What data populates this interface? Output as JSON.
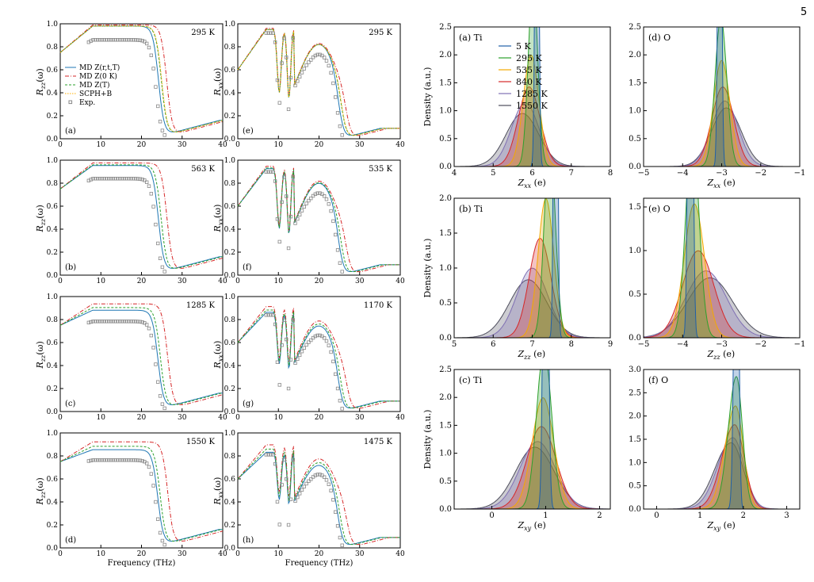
{
  "page_number": "5",
  "colors": {
    "md_full": "#1f77b4",
    "md_0K": "#d62728",
    "md_T": "#2ca02c",
    "scph": "#ffb000",
    "exp": "#888888",
    "T5": "#1f5fa8",
    "T295": "#2ca02c",
    "T535": "#f2a900",
    "T840": "#d62728",
    "T1285": "#7f6fb3",
    "T1550": "#4d4d5c"
  },
  "reflectivity": {
    "legend": {
      "labels": [
        "MD Z(r,t,T)",
        "MD Z(0 K)",
        "MD Z(T)",
        "SCPH+B",
        "Exp."
      ],
      "placement": "upper-left of panel (a)"
    },
    "xlabel": "Frequency (THz)",
    "xlim": [
      0,
      40
    ],
    "ylim": [
      0,
      1.0
    ],
    "xticks": [
      "0",
      "10",
      "20",
      "30",
      "40"
    ],
    "yticks": [
      "0.0",
      "0.2",
      "0.4",
      "0.6",
      "0.8",
      "1.0"
    ],
    "panels": [
      {
        "id": "a",
        "label": "(a)",
        "temp": "295 K",
        "ylabel": "R_zz(ω)",
        "comp": "zz",
        "has_scph": true
      },
      {
        "id": "e",
        "label": "(e)",
        "temp": "295 K",
        "ylabel": "R_xx(ω)",
        "comp": "xx",
        "has_scph": true
      },
      {
        "id": "b",
        "label": "(b)",
        "temp": "563 K",
        "ylabel": "R_zz(ω)",
        "comp": "zz",
        "has_scph": false
      },
      {
        "id": "f",
        "label": "(f)",
        "temp": "535 K",
        "ylabel": "R_xx(ω)",
        "comp": "xx",
        "has_scph": false
      },
      {
        "id": "c",
        "label": "(c)",
        "temp": "1285 K",
        "ylabel": "R_zz(ω)",
        "comp": "zz",
        "has_scph": false
      },
      {
        "id": "g",
        "label": "(g)",
        "temp": "1170 K",
        "ylabel": "R_xx(ω)",
        "comp": "xx",
        "has_scph": false
      },
      {
        "id": "d",
        "label": "(d)",
        "temp": "1550 K",
        "ylabel": "R_zz(ω)",
        "comp": "zz",
        "has_scph": false
      },
      {
        "id": "h",
        "label": "(h)",
        "temp": "1475 K",
        "ylabel": "R_xx(ω)",
        "comp": "xx",
        "has_scph": false
      }
    ]
  },
  "charges": {
    "legend": {
      "labels": [
        "5 K",
        "295 K",
        "535 K",
        "840 K",
        "1285 K",
        "1550 K"
      ],
      "placement": "panel (a) right of label"
    },
    "ylabel": "Density (a.u.)",
    "panels": [
      {
        "id": "a",
        "label": "(a) Ti",
        "xlabel": "Z_xx (e)",
        "xlim": [
          4,
          8
        ],
        "ylim": [
          0,
          2.5
        ],
        "xticks": [
          "4",
          "5",
          "6",
          "7",
          "8"
        ],
        "yticks": [
          "0.0",
          "0.5",
          "1.0",
          "1.5",
          "2.0",
          "2.5"
        ],
        "mu": [
          6.12,
          6.02,
          5.97,
          5.92,
          5.82,
          5.75
        ],
        "sigma": [
          0.04,
          0.12,
          0.2,
          0.28,
          0.35,
          0.42
        ]
      },
      {
        "id": "d",
        "label": "(d) O",
        "xlabel": "Z_xx (e)",
        "xlim": [
          -5,
          -1
        ],
        "ylim": [
          0,
          2.5
        ],
        "xticks": [
          "-5",
          "-4",
          "-3",
          "-2",
          "-1"
        ],
        "yticks": [
          "0.0",
          "0.5",
          "1.0",
          "1.5",
          "2.0",
          "2.5"
        ],
        "mu": [
          -3.05,
          -3.02,
          -3.0,
          -2.97,
          -2.92,
          -2.88
        ],
        "sigma": [
          0.04,
          0.15,
          0.21,
          0.28,
          0.34,
          0.38
        ]
      },
      {
        "id": "b",
        "label": "(b) Ti",
        "xlabel": "Z_zz (e)",
        "xlim": [
          5,
          9
        ],
        "ylim": [
          0,
          2.0
        ],
        "xticks": [
          "5",
          "6",
          "7",
          "8",
          "9"
        ],
        "yticks": [
          "0.0",
          "0.5",
          "1.0",
          "1.5",
          "2.0"
        ],
        "mu": [
          7.6,
          7.45,
          7.35,
          7.2,
          7.0,
          6.9
        ],
        "sigma": [
          0.04,
          0.14,
          0.2,
          0.28,
          0.4,
          0.48
        ]
      },
      {
        "id": "e",
        "label": "(e) O",
        "xlabel": "Z_zz (e)",
        "xlim": [
          -5,
          -1
        ],
        "ylim": [
          0,
          1.6
        ],
        "xticks": [
          "-5",
          "-4",
          "-3",
          "-2",
          "-1"
        ],
        "yticks": [
          "0.0",
          "0.5",
          "1.0",
          "1.5"
        ],
        "mu": [
          -3.8,
          -3.75,
          -3.7,
          -3.6,
          -3.4,
          -3.3
        ],
        "sigma": [
          0.05,
          0.17,
          0.26,
          0.4,
          0.52,
          0.58
        ]
      },
      {
        "id": "c",
        "label": "(c) Ti",
        "xlabel": "Z_xy (e)",
        "xlim": [
          -0.7,
          2.2
        ],
        "ylim": [
          0,
          2.5
        ],
        "xticks": [
          "0",
          "1",
          "2"
        ],
        "yticks": [
          "0.0",
          "0.5",
          "1.0",
          "1.5",
          "2.0",
          "2.5"
        ],
        "mu": [
          1.0,
          0.97,
          0.95,
          0.92,
          0.85,
          0.8
        ],
        "sigma": [
          0.04,
          0.14,
          0.2,
          0.27,
          0.33,
          0.36
        ]
      },
      {
        "id": "f",
        "label": "(f) O",
        "xlabel": "Z_xy (e)",
        "xlim": [
          -0.3,
          3.3
        ],
        "ylim": [
          0,
          3.0
        ],
        "xticks": [
          "0",
          "1",
          "2",
          "3"
        ],
        "yticks": [
          "0.0",
          "0.5",
          "1.0",
          "1.5",
          "2.0",
          "2.5",
          "3.0"
        ],
        "mu": [
          1.85,
          1.84,
          1.82,
          1.8,
          1.76,
          1.72
        ],
        "sigma": [
          0.04,
          0.14,
          0.18,
          0.22,
          0.26,
          0.28
        ],
        "skew": true
      }
    ]
  }
}
